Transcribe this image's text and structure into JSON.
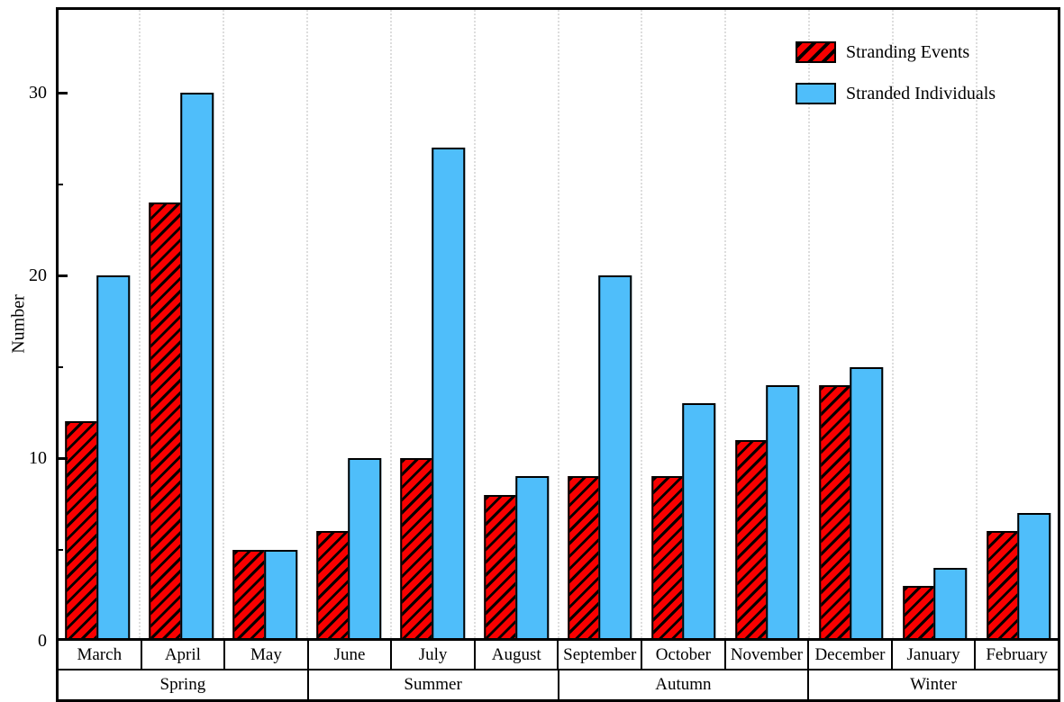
{
  "chart_data": {
    "type": "bar",
    "title": "",
    "ylabel": "Number",
    "categories": [
      "March",
      "April",
      "May",
      "June",
      "July",
      "August",
      "September",
      "October",
      "November",
      "December",
      "January",
      "February"
    ],
    "season_groups": [
      {
        "label": "Spring",
        "months": 3
      },
      {
        "label": "Summer",
        "months": 3
      },
      {
        "label": "Autumn",
        "months": 3
      },
      {
        "label": "Winter",
        "months": 3
      }
    ],
    "series": [
      {
        "name": "Stranding Events",
        "color": "#f80000",
        "hatch": true,
        "values": [
          12,
          24,
          5,
          6,
          10,
          8,
          9,
          9,
          11,
          14,
          3,
          6
        ]
      },
      {
        "name": "Stranded Individuals",
        "color": "#4fbefa",
        "hatch": false,
        "values": [
          20,
          30,
          5,
          10,
          27,
          9,
          20,
          13,
          14,
          15,
          4,
          7
        ]
      }
    ],
    "ylim": [
      0,
      34.7
    ],
    "yticks_major": [
      0,
      10,
      20,
      30
    ],
    "yticks_minor": [
      5,
      15,
      25
    ],
    "grid": "vertical dotted lines at month boundaries",
    "legend_position": "top-right",
    "outline_color": "#000000",
    "grid_color": "#dddddd"
  }
}
